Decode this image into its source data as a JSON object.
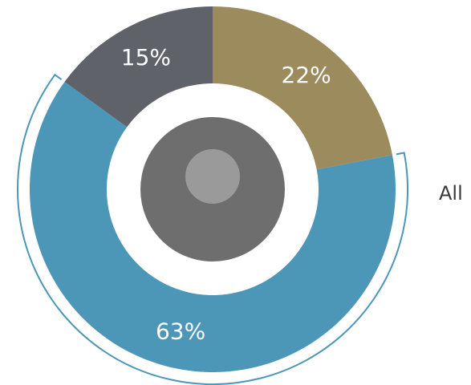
{
  "chart_data": {
    "type": "donut",
    "values": [
      22,
      63,
      15
    ],
    "value_labels": [
      "22%",
      "63%",
      "15%"
    ],
    "colors": [
      "#9b8b5d",
      "#4c97b8",
      "#606269"
    ],
    "annotation": "All"
  }
}
